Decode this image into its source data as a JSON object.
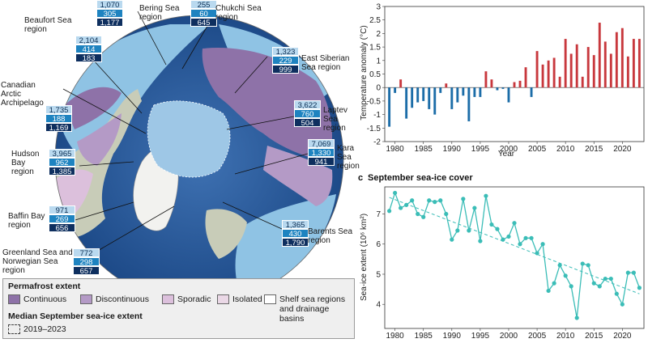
{
  "map": {
    "regions": [
      {
        "id": "bering",
        "label": "Bering Sea region",
        "v": [
          "1,070",
          "305",
          "1,177"
        ]
      },
      {
        "id": "chukchi",
        "label": "Chukchi Sea region",
        "v": [
          "255",
          "60",
          "645"
        ]
      },
      {
        "id": "beaufort",
        "label": "Beaufort Sea region",
        "v": [
          "2,104",
          "414",
          "183"
        ]
      },
      {
        "id": "east-siberian",
        "label": "East Siberian Sea region",
        "v": [
          "1,323",
          "229",
          "999"
        ]
      },
      {
        "id": "canadian",
        "label": "Canadian Arctic Archipelago",
        "v": [
          "1,735",
          "188",
          "1,169"
        ]
      },
      {
        "id": "laptev",
        "label": "Laptev Sea region",
        "v": [
          "3,622",
          "760",
          "504"
        ]
      },
      {
        "id": "kara",
        "label": "Kara Sea region",
        "v": [
          "7,069",
          "1,330",
          "941"
        ]
      },
      {
        "id": "hudson",
        "label": "Hudson Bay region",
        "v": [
          "3,965",
          "962",
          "1,385"
        ]
      },
      {
        "id": "baffin",
        "label": "Baffin Bay region",
        "v": [
          "971",
          "269",
          "656"
        ]
      },
      {
        "id": "barents",
        "label": "Barents Sea region",
        "v": [
          "1,365",
          "430",
          "1,790"
        ]
      },
      {
        "id": "greenland",
        "label": "Greenland Sea and Norwegian Sea region",
        "v": [
          "772",
          "298",
          "657"
        ]
      }
    ]
  },
  "legend": {
    "permafrost_title": "Permafrost extent",
    "items": [
      "Continuous",
      "Discontinuous",
      "Sporadic",
      "Isolated",
      "Shelf sea regions and drainage basins"
    ],
    "ice_title": "Median September sea-ice extent",
    "ice_item": "2019–2023"
  },
  "colors": {
    "continuous": "#8e72a8",
    "discontinuous": "#b49ac6",
    "sporadic": "#dcc0dc",
    "isolated": "#ead8e6",
    "anomaly_positive": "#c8383d",
    "anomaly_negative": "#1c6da8",
    "seaice_line": "#3bbdb7",
    "ocean_deep": "#22508f",
    "ocean_shelf": "#8fc3e4"
  },
  "chart_data": [
    {
      "type": "bar",
      "title": "",
      "ylabel": "Temperature anomaly (°C)",
      "xlabel": "Year",
      "xlim": [
        1979,
        2023
      ],
      "ylim": [
        -2,
        3
      ],
      "yticks": [
        -2,
        -1.5,
        -1,
        -0.5,
        0,
        0.5,
        1,
        1.5,
        2,
        2.5,
        3
      ],
      "xticks": [
        1980,
        1985,
        1990,
        1995,
        2000,
        2005,
        2010,
        2015,
        2020
      ],
      "x": [
        1979,
        1980,
        1981,
        1982,
        1983,
        1984,
        1985,
        1986,
        1987,
        1988,
        1989,
        1990,
        1991,
        1992,
        1993,
        1994,
        1995,
        1996,
        1997,
        1998,
        1999,
        2000,
        2001,
        2002,
        2003,
        2004,
        2005,
        2006,
        2007,
        2008,
        2009,
        2010,
        2011,
        2012,
        2013,
        2014,
        2015,
        2016,
        2017,
        2018,
        2019,
        2020,
        2021,
        2022,
        2023
      ],
      "values": [
        -1.45,
        -0.2,
        0.3,
        -1.15,
        -0.75,
        -0.55,
        -0.5,
        -0.8,
        -1.0,
        -0.2,
        0.15,
        -0.8,
        -0.55,
        -0.3,
        -1.25,
        -0.35,
        -0.35,
        0.6,
        0.3,
        -0.1,
        -0.05,
        -0.55,
        0.2,
        0.25,
        0.75,
        -0.35,
        1.35,
        0.85,
        1.0,
        1.1,
        0.4,
        1.8,
        1.25,
        1.6,
        0.4,
        1.5,
        1.2,
        2.4,
        1.7,
        1.25,
        2.05,
        2.2,
        1.15,
        1.8,
        1.8
      ]
    },
    {
      "type": "line",
      "panel_letter": "c",
      "title": "September sea-ice cover",
      "ylabel": "Sea-ice extent (10⁶ km²)",
      "xlabel": "Year",
      "xlim": [
        1979,
        2023
      ],
      "ylim": [
        3.2,
        7.9
      ],
      "yticks": [
        4,
        5,
        6,
        7
      ],
      "xticks": [
        1980,
        1985,
        1990,
        1995,
        2000,
        2005,
        2010,
        2015,
        2020
      ],
      "x": [
        1979,
        1980,
        1981,
        1982,
        1983,
        1984,
        1985,
        1986,
        1987,
        1988,
        1989,
        1990,
        1991,
        1992,
        1993,
        1994,
        1995,
        1996,
        1997,
        1998,
        1999,
        2000,
        2001,
        2002,
        2003,
        2004,
        2005,
        2006,
        2007,
        2008,
        2009,
        2010,
        2011,
        2012,
        2013,
        2014,
        2015,
        2016,
        2017,
        2018,
        2019,
        2020,
        2021,
        2022,
        2023
      ],
      "values": [
        7.1,
        7.7,
        7.2,
        7.3,
        7.45,
        7.0,
        6.9,
        7.45,
        7.4,
        7.45,
        7.0,
        6.15,
        6.45,
        7.5,
        6.45,
        7.2,
        6.1,
        7.6,
        6.65,
        6.5,
        6.15,
        6.25,
        6.7,
        6.0,
        6.2,
        6.2,
        5.7,
        6.0,
        4.45,
        4.7,
        5.3,
        4.95,
        4.6,
        3.55,
        5.35,
        5.3,
        4.7,
        4.6,
        4.85,
        4.85,
        4.35,
        4.0,
        5.05,
        5.05,
        4.55
      ],
      "trend": {
        "x": [
          1979,
          2023
        ],
        "y": [
          7.55,
          4.35
        ]
      }
    }
  ]
}
